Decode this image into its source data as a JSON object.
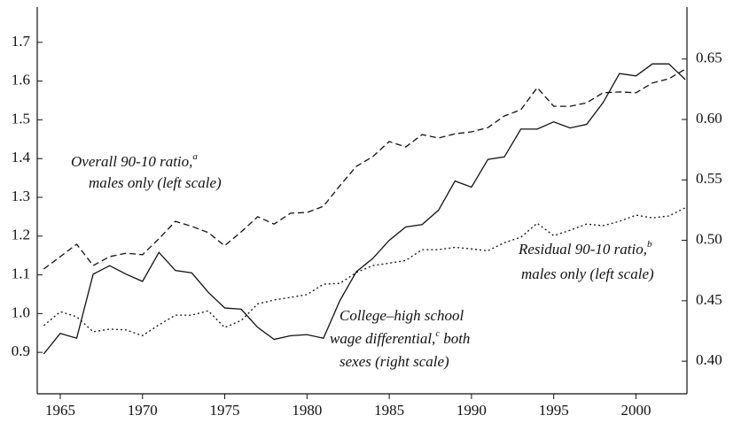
{
  "chart_data": {
    "type": "line",
    "x": [
      1964,
      1965,
      1966,
      1967,
      1968,
      1969,
      1970,
      1971,
      1972,
      1973,
      1974,
      1975,
      1976,
      1977,
      1978,
      1979,
      1980,
      1981,
      1982,
      1983,
      1984,
      1985,
      1986,
      1987,
      1988,
      1989,
      1990,
      1991,
      1992,
      1993,
      1994,
      1995,
      1996,
      1997,
      1998,
      1999,
      2000,
      2001,
      2002,
      2003
    ],
    "xlim": [
      1963.6,
      2003.1
    ],
    "xticks": [
      1965,
      1970,
      1975,
      1980,
      1985,
      1990,
      1995,
      2000
    ],
    "ylim": [
      0.793,
      1.791
    ],
    "yticks": [
      {
        "value": 0.9,
        "label": "0.9"
      },
      {
        "value": 1.0,
        "label": "1.0"
      },
      1.1,
      1.2,
      1.3,
      1.4,
      1.5,
      1.6,
      1.7
    ],
    "y2lim": [
      0.373,
      0.693
    ],
    "y2ticks": [
      {
        "value": 0.4,
        "label": "0.40"
      },
      0.45,
      {
        "value": 0.5,
        "label": "0.50"
      },
      0.55,
      {
        "value": 0.6,
        "label": "0.60"
      },
      0.65
    ],
    "series": [
      {
        "name": "Overall 90-10 ratio, males only (left scale)",
        "color": "#111111",
        "dash": "dashed",
        "values": [
          1.115,
          1.147,
          1.179,
          1.124,
          1.147,
          1.156,
          1.152,
          1.193,
          1.238,
          1.225,
          1.209,
          1.175,
          1.211,
          1.25,
          1.231,
          1.259,
          1.261,
          1.277,
          1.33,
          1.38,
          1.405,
          1.444,
          1.43,
          1.462,
          1.453,
          1.464,
          1.469,
          1.48,
          1.51,
          1.526,
          1.583,
          1.535,
          1.535,
          1.544,
          1.57,
          1.572,
          1.57,
          1.595,
          1.606,
          1.631
        ]
      },
      {
        "name": "Residual 90-10 ratio, males only (left scale)",
        "color": "#111111",
        "dash": "dotted",
        "values": [
          0.969,
          1.005,
          0.992,
          0.953,
          0.96,
          0.958,
          0.943,
          0.971,
          0.996,
          0.996,
          1.007,
          0.964,
          0.982,
          1.025,
          1.035,
          1.042,
          1.049,
          1.076,
          1.078,
          1.106,
          1.124,
          1.13,
          1.137,
          1.165,
          1.165,
          1.171,
          1.167,
          1.162,
          1.183,
          1.197,
          1.233,
          1.201,
          1.215,
          1.231,
          1.227,
          1.238,
          1.254,
          1.247,
          1.252,
          1.273
        ]
      },
      {
        "name": "College–high school wage differential, both sexes (right scale)",
        "color": "#111111",
        "dash": "solid",
        "axis": "y2",
        "values": [
          0.406,
          0.423,
          0.419,
          0.472,
          0.479,
          0.472,
          0.466,
          0.49,
          0.475,
          0.473,
          0.457,
          0.444,
          0.443,
          0.428,
          0.418,
          0.421,
          0.422,
          0.419,
          0.45,
          0.474,
          0.485,
          0.5,
          0.511,
          0.513,
          0.525,
          0.549,
          0.544,
          0.567,
          0.569,
          0.592,
          0.592,
          0.598,
          0.593,
          0.596,
          0.614,
          0.638,
          0.636,
          0.646,
          0.646,
          0.633
        ]
      }
    ],
    "annotations": [
      {
        "lines": [
          "Overall 90-10 ratio,",
          "males only (left scale)"
        ],
        "sup": "a"
      },
      {
        "lines": [
          "Residual 90-10 ratio,",
          "males only (left scale)"
        ],
        "sup": "b"
      },
      {
        "lines": [
          "College–high school",
          "wage differential,",
          "both",
          "sexes (right scale)"
        ],
        "sup": "c"
      }
    ]
  }
}
